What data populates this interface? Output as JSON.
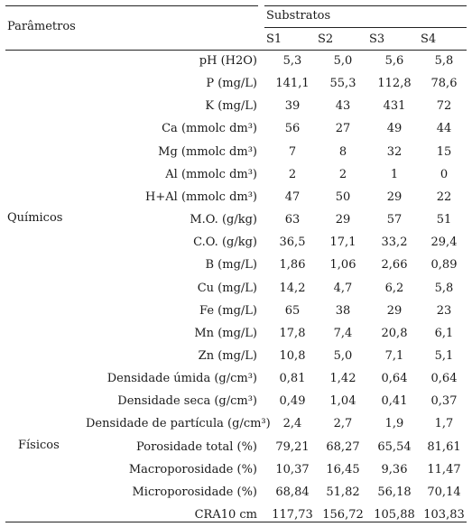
{
  "header": {
    "parametros": "Parâmetros",
    "substratos": "Substratos",
    "columns": [
      "S1",
      "S2",
      "S3",
      "S4"
    ]
  },
  "groups": {
    "quimicos": "Químicos",
    "fisicos": "Físicos"
  },
  "rows": [
    {
      "param": "pH (H2O)",
      "values": [
        "5,3",
        "5,0",
        "5,6",
        "5,8"
      ]
    },
    {
      "param": "P (mg/L)",
      "values": [
        "141,1",
        "55,3",
        "112,8",
        "78,6"
      ]
    },
    {
      "param": "K (mg/L)",
      "values": [
        "39",
        "43",
        "431",
        "72"
      ]
    },
    {
      "param": "Ca (mmolc dm³)",
      "values": [
        "56",
        "27",
        "49",
        "44"
      ]
    },
    {
      "param": "Mg (mmolc dm³)",
      "values": [
        "7",
        "8",
        "32",
        "15"
      ]
    },
    {
      "param": "Al (mmolc dm³)",
      "values": [
        "2",
        "2",
        "1",
        "0"
      ]
    },
    {
      "param": "H+Al (mmolc dm³)",
      "values": [
        "47",
        "50",
        "29",
        "22"
      ]
    },
    {
      "param": "M.O. (g/kg)",
      "values": [
        "63",
        "29",
        "57",
        "51"
      ]
    },
    {
      "param": "C.O. (g/kg)",
      "values": [
        "36,5",
        "17,1",
        "33,2",
        "29,4"
      ]
    },
    {
      "param": "B (mg/L)",
      "values": [
        "1,86",
        "1,06",
        "2,66",
        "0,89"
      ]
    },
    {
      "param": "Cu (mg/L)",
      "values": [
        "14,2",
        "4,7",
        "6,2",
        "5,8"
      ]
    },
    {
      "param": "Fe (mg/L)",
      "values": [
        "65",
        "38",
        "29",
        "23"
      ]
    },
    {
      "param": "Mn (mg/L)",
      "values": [
        "17,8",
        "7,4",
        "20,8",
        "6,1"
      ]
    },
    {
      "param": "Zn (mg/L)",
      "values": [
        "10,8",
        "5,0",
        "7,1",
        "5,1"
      ]
    },
    {
      "param": "Densidade úmida (g/cm³)",
      "values": [
        "0,81",
        "1,42",
        "0,64",
        "0,64"
      ]
    },
    {
      "param": "Densidade seca (g/cm³)",
      "values": [
        "0,49",
        "1,04",
        "0,41",
        "0,37"
      ]
    },
    {
      "param": "Densidade de partícula (g/cm³)",
      "values": [
        "2,4",
        "2,7",
        "1,9",
        "1,7"
      ]
    },
    {
      "param": "Porosidade total (%)",
      "values": [
        "79,21",
        "68,27",
        "65,54",
        "81,61"
      ]
    },
    {
      "param": "Macroporosidade (%)",
      "values": [
        "10,37",
        "16,45",
        "9,36",
        "11,47"
      ]
    },
    {
      "param": "Microporosidade (%)",
      "values": [
        "68,84",
        "51,82",
        "56,18",
        "70,14"
      ]
    },
    {
      "param": "CRA10 cm",
      "values": [
        "117,73",
        "156,72",
        "105,88",
        "103,83"
      ]
    }
  ]
}
